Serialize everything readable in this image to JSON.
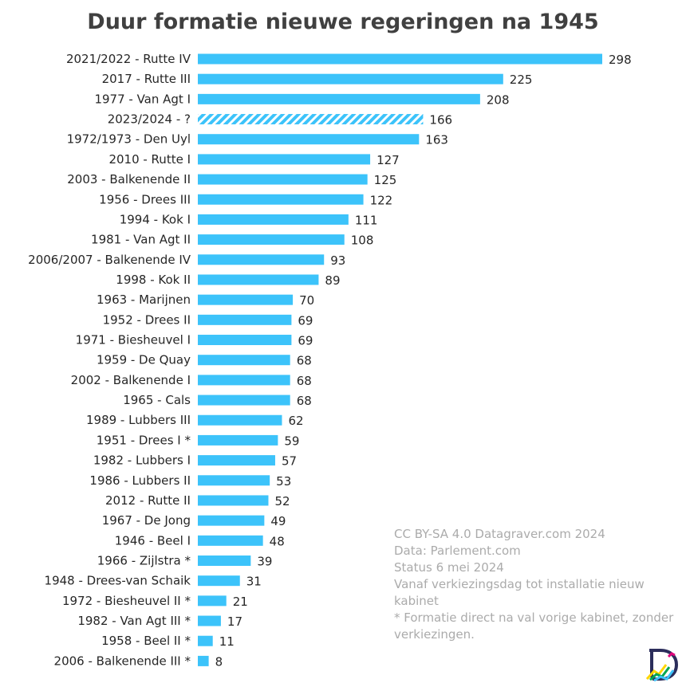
{
  "chart_data": {
    "type": "bar",
    "orientation": "horizontal",
    "title": "Duur formatie nieuwe regeringen na 1945",
    "xlabel": "",
    "ylabel": "",
    "xlim": [
      0,
      298
    ],
    "grid": false,
    "bar_color": "#3CC3FA",
    "hatched_categories": [
      "2023/2024 - ?"
    ],
    "categories": [
      "2021/2022 - Rutte IV",
      "2017 - Rutte III",
      "1977 - Van Agt I",
      "2023/2024 - ?",
      "1972/1973 - Den Uyl",
      "2010 - Rutte I",
      "2003 - Balkenende II",
      "1956 - Drees III",
      "1994 - Kok I",
      "1981 - Van Agt II",
      "2006/2007 - Balkenende IV",
      "1998 - Kok II",
      "1963 - Marijnen",
      "1952 - Drees II",
      "1971 - Biesheuvel I",
      "1959 - De Quay",
      "2002 - Balkenende I",
      "1965 - Cals",
      "1989 - Lubbers III",
      "1951 - Drees I *",
      "1982 - Lubbers I",
      "1986 - Lubbers II",
      "2012 - Rutte II",
      "1967 - De Jong",
      "1946 - Beel I",
      "1966 - Zijlstra *",
      "1948 - Drees-van Schaik",
      "1972 - Biesheuvel II *",
      "1982 - Van Agt III *",
      "1958 - Beel II *",
      "2006 - Balkenende III *"
    ],
    "values": [
      298,
      225,
      208,
      166,
      163,
      127,
      125,
      122,
      111,
      108,
      93,
      89,
      70,
      69,
      69,
      68,
      68,
      68,
      62,
      59,
      57,
      53,
      52,
      49,
      48,
      39,
      31,
      21,
      17,
      11,
      8
    ]
  },
  "credits": [
    "CC BY-SA 4.0 Datagraver.com 2024",
    "Data: Parlement.com",
    "Status 6 mei 2024",
    "Vanaf verkiezingsdag tot installatie nieuw kabinet",
    "* Formatie direct na val vorige kabinet, zonder verkiezingen."
  ],
  "logo": {
    "icon": "datagraver-logo-icon",
    "colors": [
      "#2b2d5b",
      "#ffd600",
      "#00a651",
      "#3cc3fa",
      "#e0007a"
    ]
  }
}
